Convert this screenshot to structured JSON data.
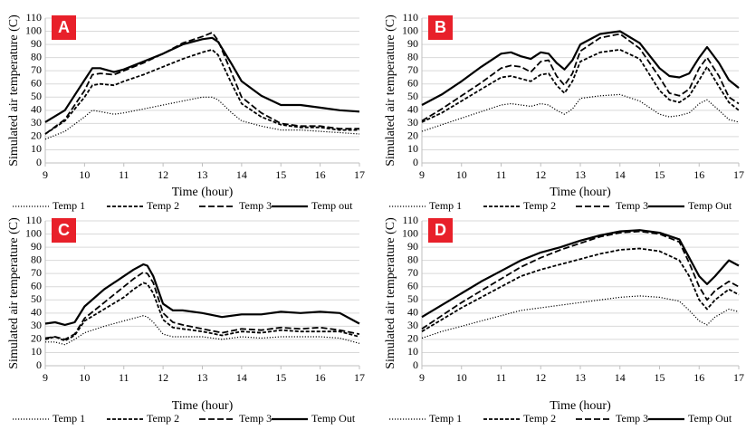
{
  "chart_data": [
    {
      "type": "line",
      "label": "A",
      "x_label": "Time (hour)",
      "y_label": "Simulated air temperature (C)",
      "xlim": [
        9,
        17
      ],
      "xticks": [
        9,
        10,
        11,
        12,
        13,
        14,
        15,
        16,
        17
      ],
      "ylim": [
        0,
        110
      ],
      "yticks": [
        0,
        10,
        20,
        30,
        40,
        50,
        60,
        70,
        80,
        90,
        100,
        110
      ],
      "grid": true,
      "x": [
        9,
        9.5,
        10,
        10.2,
        10.4,
        10.75,
        11,
        11.5,
        12,
        12.5,
        13,
        13.25,
        13.4,
        13.75,
        14,
        14.5,
        15,
        15.5,
        16,
        16.5,
        17
      ],
      "series": [
        {
          "name": "Temp 1",
          "color": "#000000",
          "style": "dotted",
          "values": [
            18,
            24,
            35,
            40,
            39,
            37,
            38,
            41,
            44,
            47,
            50,
            50,
            48,
            38,
            32,
            28,
            25,
            25,
            24,
            23,
            22
          ]
        },
        {
          "name": "Temp 2",
          "color": "#000000",
          "style": "dashed",
          "values": [
            22,
            32,
            50,
            59,
            60,
            59,
            62,
            67,
            73,
            79,
            84,
            86,
            82,
            60,
            45,
            35,
            29,
            27,
            27,
            25,
            25
          ]
        },
        {
          "name": "Temp 3",
          "color": "#000000",
          "style": "long-dashed",
          "values": [
            22,
            33,
            55,
            67,
            68,
            67,
            70,
            76,
            83,
            91,
            96,
            99,
            93,
            68,
            50,
            38,
            30,
            28,
            28,
            26,
            26
          ]
        },
        {
          "name": "Temp out",
          "color": "#000000",
          "style": "solid",
          "values": [
            31,
            40,
            63,
            72,
            72,
            69,
            71,
            77,
            83,
            90,
            94,
            95,
            92,
            75,
            62,
            51,
            44,
            44,
            42,
            40,
            39
          ]
        }
      ]
    },
    {
      "type": "line",
      "label": "B",
      "x_label": "Time (hour)",
      "y_label": "Simulated air temperature (C)",
      "xlim": [
        9,
        17
      ],
      "xticks": [
        9,
        10,
        11,
        12,
        13,
        14,
        15,
        16,
        17
      ],
      "ylim": [
        0,
        110
      ],
      "yticks": [
        0,
        10,
        20,
        30,
        40,
        50,
        60,
        70,
        80,
        90,
        100,
        110
      ],
      "grid": true,
      "x": [
        9,
        9.5,
        10,
        10.5,
        11,
        11.25,
        11.5,
        11.75,
        12,
        12.2,
        12.4,
        12.6,
        12.8,
        13,
        13.5,
        14,
        14.5,
        15,
        15.25,
        15.5,
        15.75,
        16,
        16.2,
        16.5,
        16.75,
        17
      ],
      "series": [
        {
          "name": "Temp 1",
          "color": "#000000",
          "style": "dotted",
          "values": [
            24,
            29,
            34,
            39,
            44,
            45,
            44,
            43,
            45,
            44,
            40,
            37,
            41,
            49,
            51,
            52,
            47,
            37,
            35,
            36,
            38,
            45,
            48,
            40,
            33,
            31
          ]
        },
        {
          "name": "Temp 2",
          "color": "#000000",
          "style": "dashed",
          "values": [
            31,
            38,
            47,
            56,
            65,
            66,
            64,
            62,
            67,
            68,
            59,
            53,
            62,
            77,
            84,
            86,
            79,
            55,
            48,
            46,
            51,
            63,
            73,
            58,
            46,
            40
          ]
        },
        {
          "name": "Temp 3",
          "color": "#000000",
          "style": "long-dashed",
          "values": [
            32,
            41,
            51,
            61,
            72,
            74,
            73,
            69,
            77,
            78,
            66,
            59,
            68,
            85,
            95,
            98,
            87,
            65,
            53,
            51,
            56,
            72,
            80,
            66,
            50,
            45
          ]
        },
        {
          "name": "Temp Out",
          "color": "#000000",
          "style": "solid",
          "values": [
            44,
            52,
            62,
            73,
            83,
            84,
            81,
            79,
            84,
            83,
            76,
            71,
            78,
            90,
            98,
            100,
            91,
            72,
            66,
            65,
            68,
            80,
            88,
            76,
            63,
            57
          ]
        }
      ]
    },
    {
      "type": "line",
      "label": "C",
      "x_label": "Time (hour)",
      "y_label": "Simulated air temperature (C)",
      "xlim": [
        9,
        17
      ],
      "xticks": [
        9,
        10,
        11,
        12,
        13,
        14,
        15,
        16,
        17
      ],
      "ylim": [
        0,
        110
      ],
      "yticks": [
        0,
        10,
        20,
        30,
        40,
        50,
        60,
        70,
        80,
        90,
        100,
        110
      ],
      "grid": true,
      "x": [
        9,
        9.25,
        9.5,
        9.75,
        10,
        10.5,
        11,
        11.25,
        11.5,
        11.6,
        11.75,
        12,
        12.25,
        12.5,
        13,
        13.5,
        14,
        14.5,
        15,
        15.5,
        16,
        16.5,
        17
      ],
      "series": [
        {
          "name": "Temp 1",
          "color": "#000000",
          "style": "dotted",
          "values": [
            18,
            18,
            16,
            20,
            25,
            30,
            34,
            36,
            38,
            37,
            33,
            24,
            22,
            22,
            22,
            20,
            22,
            21,
            22,
            22,
            22,
            21,
            17
          ]
        },
        {
          "name": "Temp 2",
          "color": "#000000",
          "style": "dashed",
          "values": [
            20,
            22,
            19,
            23,
            34,
            43,
            52,
            58,
            63,
            62,
            55,
            35,
            29,
            28,
            26,
            23,
            26,
            25,
            27,
            26,
            26,
            26,
            22
          ]
        },
        {
          "name": "Temp 3",
          "color": "#000000",
          "style": "long-dashed",
          "values": [
            21,
            22,
            20,
            24,
            36,
            48,
            60,
            66,
            71,
            70,
            63,
            40,
            33,
            31,
            28,
            25,
            28,
            27,
            29,
            28,
            29,
            27,
            24
          ]
        },
        {
          "name": "Temp Out",
          "color": "#000000",
          "style": "solid",
          "values": [
            32,
            33,
            31,
            33,
            45,
            58,
            68,
            73,
            77,
            76,
            68,
            47,
            42,
            42,
            40,
            37,
            39,
            39,
            41,
            40,
            41,
            40,
            32
          ]
        }
      ]
    },
    {
      "type": "line",
      "label": "D",
      "x_label": "Time (hour)",
      "y_label": "Simulated air temperature (C)",
      "xlim": [
        9,
        17
      ],
      "xticks": [
        9,
        10,
        11,
        12,
        13,
        14,
        15,
        16,
        17
      ],
      "ylim": [
        0,
        110
      ],
      "yticks": [
        0,
        10,
        20,
        30,
        40,
        50,
        60,
        70,
        80,
        90,
        100,
        110
      ],
      "grid": true,
      "x": [
        9,
        9.5,
        10,
        10.5,
        11,
        11.5,
        12,
        12.5,
        13,
        13.5,
        14,
        14.5,
        15,
        15.5,
        15.75,
        16,
        16.2,
        16.4,
        16.75,
        17
      ],
      "series": [
        {
          "name": "Temp 1",
          "color": "#000000",
          "style": "dotted",
          "values": [
            21,
            26,
            30,
            34,
            38,
            42,
            44,
            46,
            48,
            50,
            52,
            53,
            52,
            49,
            42,
            34,
            31,
            37,
            43,
            41
          ]
        },
        {
          "name": "Temp 2",
          "color": "#000000",
          "style": "dashed",
          "values": [
            26,
            35,
            44,
            52,
            60,
            68,
            73,
            77,
            81,
            85,
            88,
            89,
            87,
            80,
            68,
            50,
            43,
            50,
            58,
            54
          ]
        },
        {
          "name": "Temp 3",
          "color": "#000000",
          "style": "long-dashed",
          "values": [
            28,
            38,
            48,
            57,
            66,
            75,
            82,
            88,
            93,
            98,
            101,
            102,
            100,
            94,
            78,
            60,
            50,
            57,
            64,
            60
          ]
        },
        {
          "name": "Temp Out",
          "color": "#000000",
          "style": "solid",
          "values": [
            37,
            46,
            55,
            64,
            72,
            80,
            86,
            90,
            95,
            99,
            102,
            103,
            101,
            96,
            82,
            68,
            62,
            68,
            80,
            76
          ]
        }
      ]
    }
  ]
}
